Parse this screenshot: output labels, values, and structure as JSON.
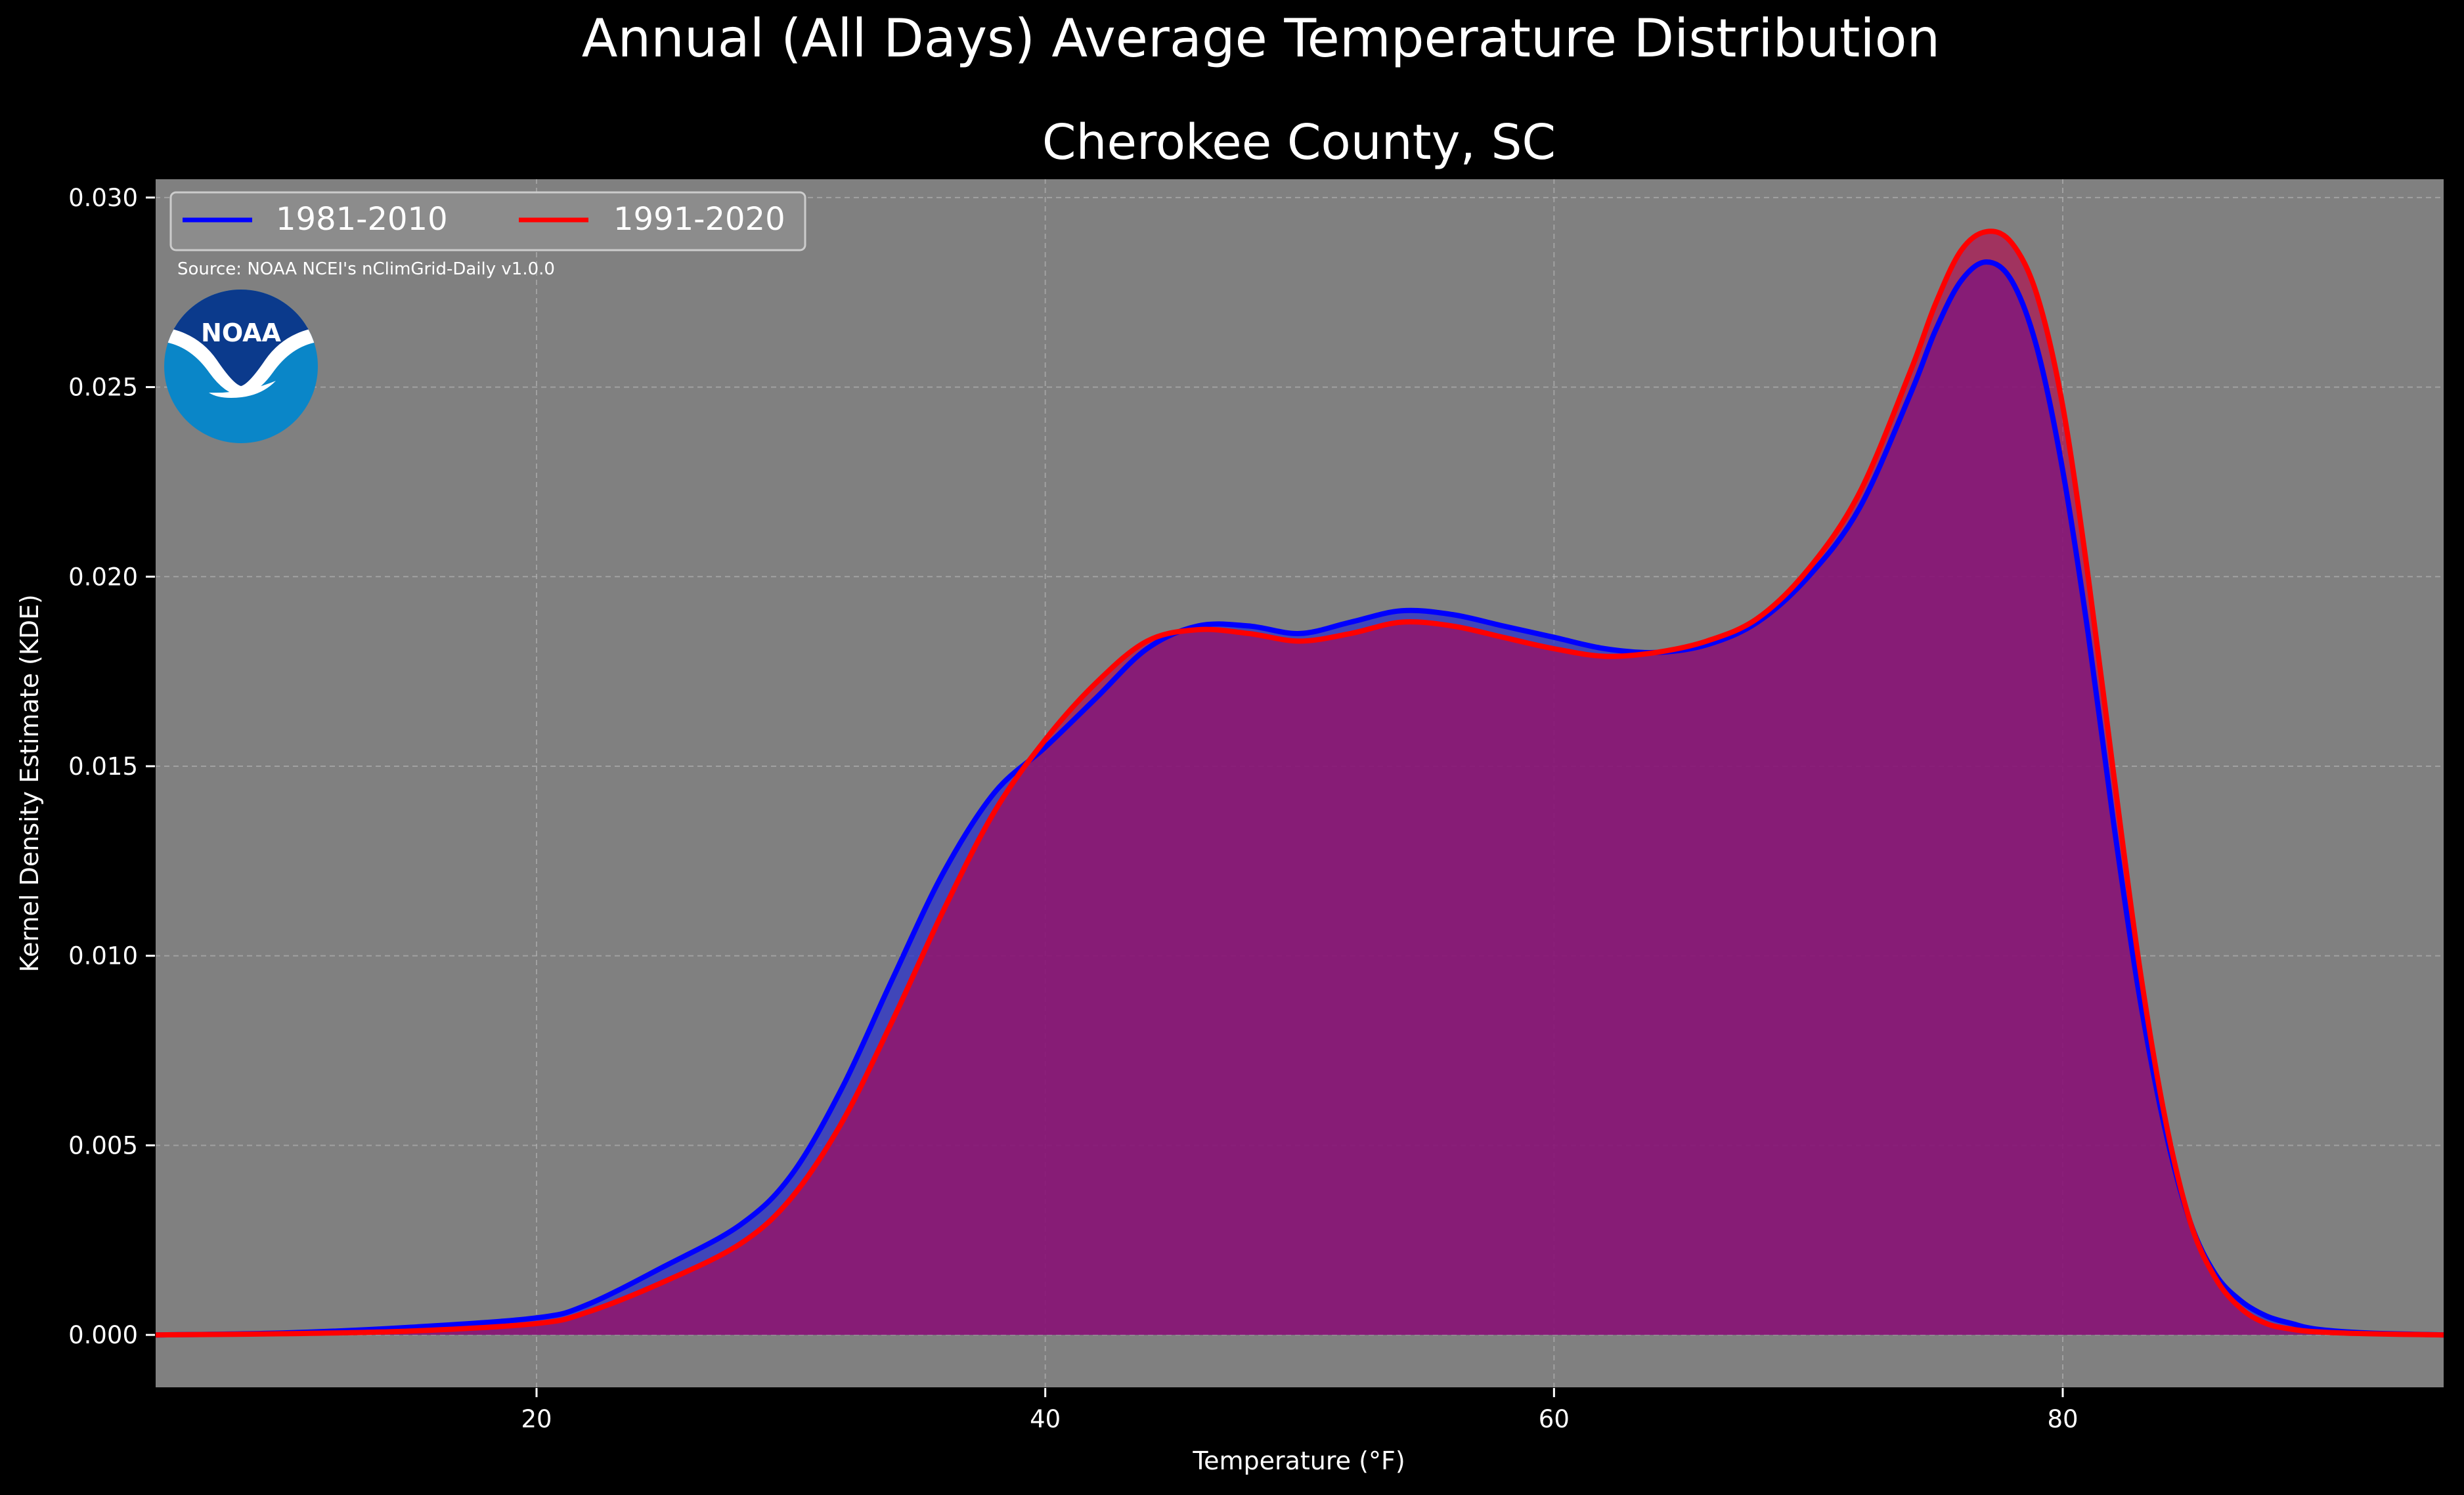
{
  "suptitle": "Annual (All Days) Average Temperature Distribution",
  "chart_data": {
    "type": "area",
    "title": "Cherokee County, SC",
    "xlabel": "Temperature ($^\\circ$F)",
    "xlabel_display": "Temperature (°F)",
    "ylabel": "Kernel Density Estimate (KDE)",
    "xlim": [
      5,
      95
    ],
    "ylim": [
      -0.0014,
      0.0305
    ],
    "xticks": [
      20,
      40,
      60,
      80
    ],
    "yticks": [
      0.0,
      0.005,
      0.01,
      0.015,
      0.02,
      0.025,
      0.03
    ],
    "ytick_labels": [
      "0.000",
      "0.005",
      "0.010",
      "0.015",
      "0.020",
      "0.025",
      "0.030"
    ],
    "grid": true,
    "legend_position": "top-left",
    "source_note": "Source: NOAA NCEI's nClimGrid-Daily v1.0.0",
    "logo_text": "NOAA",
    "series": [
      {
        "name": "1981-2010",
        "color": "#0000ff",
        "fill": "#2b33cc",
        "x": [
          5,
          10,
          15,
          20,
          22,
          25,
          28,
          30,
          32,
          34,
          36,
          38,
          40,
          42,
          44,
          46,
          48,
          50,
          52,
          54,
          56,
          58,
          60,
          62,
          64,
          66,
          68,
          70,
          72,
          74,
          75,
          76,
          77,
          78,
          79,
          80,
          81,
          82,
          83,
          84,
          85,
          86,
          87,
          88,
          89,
          90,
          92,
          95
        ],
        "y": [
          0.0,
          5e-05,
          0.0002,
          0.00045,
          0.0008,
          0.0018,
          0.0029,
          0.0042,
          0.0065,
          0.0094,
          0.0122,
          0.0143,
          0.0155,
          0.0168,
          0.0181,
          0.0187,
          0.0187,
          0.0185,
          0.0188,
          0.0191,
          0.019,
          0.0187,
          0.0184,
          0.0181,
          0.018,
          0.0182,
          0.0188,
          0.02,
          0.0218,
          0.0248,
          0.0265,
          0.0278,
          0.0283,
          0.0278,
          0.026,
          0.0228,
          0.0185,
          0.0135,
          0.009,
          0.0055,
          0.003,
          0.0016,
          0.0009,
          0.0005,
          0.0003,
          0.00015,
          5e-05,
          0.0
        ]
      },
      {
        "name": "1991-2020",
        "color": "#ff0000",
        "fill": "#b8004a",
        "x": [
          5,
          10,
          15,
          20,
          22,
          25,
          28,
          30,
          32,
          34,
          36,
          38,
          40,
          42,
          44,
          46,
          48,
          50,
          52,
          54,
          56,
          58,
          60,
          62,
          64,
          66,
          68,
          70,
          72,
          74,
          75,
          76,
          77,
          78,
          79,
          80,
          81,
          82,
          83,
          84,
          85,
          86,
          87,
          88,
          89,
          90,
          92,
          95
        ],
        "y": [
          0.0,
          3e-05,
          0.0001,
          0.0003,
          0.0006,
          0.0014,
          0.0024,
          0.0036,
          0.0056,
          0.0083,
          0.0112,
          0.0138,
          0.0157,
          0.0172,
          0.0183,
          0.0186,
          0.0185,
          0.0183,
          0.0185,
          0.0188,
          0.0187,
          0.0184,
          0.0181,
          0.0179,
          0.018,
          0.0183,
          0.0189,
          0.0202,
          0.0222,
          0.0254,
          0.0272,
          0.0286,
          0.0291,
          0.0288,
          0.0274,
          0.0245,
          0.02,
          0.0148,
          0.0098,
          0.0058,
          0.003,
          0.0015,
          0.0007,
          0.0003,
          0.00015,
          8e-05,
          3e-05,
          0.0
        ]
      }
    ]
  }
}
